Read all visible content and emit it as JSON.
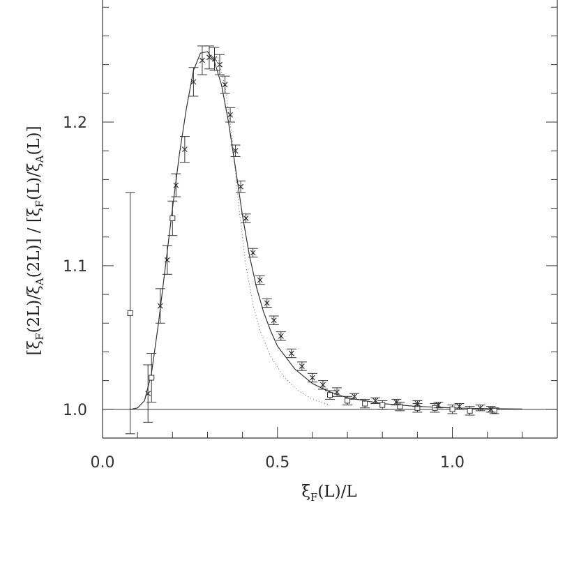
{
  "chart_data": {
    "type": "scatter",
    "xlabel": {
      "main": "ξ",
      "sub": "F",
      "rest": "(L)/L"
    },
    "ylabel": {
      "p1": "[ξ",
      "s1": "F",
      "p2": "(2L)/ξ",
      "s2": "A",
      "p3": "(2L)] / [ξ",
      "s3": "F",
      "p4": "(L)/ξ",
      "s4": "A",
      "p5": "(L)]"
    },
    "xlim": [
      0.0,
      1.3
    ],
    "ylim": [
      0.98,
      1.285
    ],
    "xticks": [
      {
        "v": 0.0,
        "label": "0.0"
      },
      {
        "v": 0.5,
        "label": "0.5"
      },
      {
        "v": 1.0,
        "label": "1.0"
      }
    ],
    "yticks": [
      {
        "v": 1.0,
        "label": "1.0"
      },
      {
        "v": 1.1,
        "label": "1.1"
      },
      {
        "v": 1.2,
        "label": "1.2"
      }
    ],
    "reference_line_y": 1.0,
    "fit_curve": {
      "x": [
        0.08,
        0.1,
        0.12,
        0.14,
        0.16,
        0.18,
        0.2,
        0.22,
        0.24,
        0.26,
        0.28,
        0.3,
        0.32,
        0.34,
        0.36,
        0.38,
        0.4,
        0.42,
        0.44,
        0.46,
        0.48,
        0.5,
        0.55,
        0.6,
        0.65,
        0.7,
        0.8,
        0.9,
        1.0,
        1.1,
        1.2
      ],
      "y": [
        1.0,
        1.001,
        1.006,
        1.025,
        1.06,
        1.1,
        1.14,
        1.178,
        1.21,
        1.236,
        1.248,
        1.249,
        1.242,
        1.226,
        1.2,
        1.168,
        1.135,
        1.107,
        1.085,
        1.068,
        1.055,
        1.044,
        1.028,
        1.018,
        1.012,
        1.008,
        1.004,
        1.002,
        1.001,
        1.0005,
        1.0002
      ]
    },
    "dotted_curve": {
      "x": [
        0.33,
        0.35,
        0.37,
        0.39,
        0.41,
        0.43,
        0.45,
        0.48,
        0.52,
        0.56,
        0.6,
        0.65
      ],
      "y": [
        1.245,
        1.225,
        1.19,
        1.14,
        1.1,
        1.073,
        1.055,
        1.037,
        1.022,
        1.013,
        1.007,
        1.003
      ]
    },
    "series": [
      {
        "marker": "square",
        "points": [
          {
            "x": 0.079,
            "y": 1.067,
            "err": 0.084
          },
          {
            "x": 0.14,
            "y": 1.022,
            "err": 0.017
          },
          {
            "x": 0.2,
            "y": 1.133,
            "err": 0.012
          },
          {
            "x": 0.65,
            "y": 1.01,
            "err": 0.003
          },
          {
            "x": 0.7,
            "y": 1.006,
            "err": 0.003
          },
          {
            "x": 0.75,
            "y": 1.004,
            "err": 0.003
          },
          {
            "x": 0.8,
            "y": 1.003,
            "err": 0.003
          },
          {
            "x": 0.85,
            "y": 1.002,
            "err": 0.003
          },
          {
            "x": 0.9,
            "y": 1.001,
            "err": 0.003
          },
          {
            "x": 0.95,
            "y": 1.001,
            "err": 0.003
          },
          {
            "x": 1.0,
            "y": 1.0,
            "err": 0.003
          },
          {
            "x": 1.05,
            "y": 0.999,
            "err": 0.003
          },
          {
            "x": 1.12,
            "y": 0.999,
            "err": 0.002
          }
        ]
      },
      {
        "marker": "cross",
        "points": [
          {
            "x": 0.13,
            "y": 1.011,
            "err": 0.02
          },
          {
            "x": 0.165,
            "y": 1.072,
            "err": 0.012
          },
          {
            "x": 0.185,
            "y": 1.104,
            "err": 0.01
          },
          {
            "x": 0.21,
            "y": 1.156,
            "err": 0.008
          },
          {
            "x": 0.235,
            "y": 1.181,
            "err": 0.009
          },
          {
            "x": 0.26,
            "y": 1.228,
            "err": 0.01
          },
          {
            "x": 0.285,
            "y": 1.243,
            "err": 0.01
          },
          {
            "x": 0.305,
            "y": 1.245,
            "err": 0.008
          },
          {
            "x": 0.32,
            "y": 1.244,
            "err": 0.008
          },
          {
            "x": 0.335,
            "y": 1.24,
            "err": 0.007
          },
          {
            "x": 0.35,
            "y": 1.226,
            "err": 0.006
          },
          {
            "x": 0.365,
            "y": 1.205,
            "err": 0.005
          },
          {
            "x": 0.38,
            "y": 1.18,
            "err": 0.004
          },
          {
            "x": 0.395,
            "y": 1.155,
            "err": 0.004
          },
          {
            "x": 0.41,
            "y": 1.133,
            "err": 0.003
          },
          {
            "x": 0.43,
            "y": 1.109,
            "err": 0.003
          },
          {
            "x": 0.45,
            "y": 1.09,
            "err": 0.003
          },
          {
            "x": 0.47,
            "y": 1.074,
            "err": 0.003
          },
          {
            "x": 0.49,
            "y": 1.062,
            "err": 0.003
          },
          {
            "x": 0.51,
            "y": 1.051,
            "err": 0.003
          },
          {
            "x": 0.54,
            "y": 1.039,
            "err": 0.003
          },
          {
            "x": 0.57,
            "y": 1.03,
            "err": 0.003
          },
          {
            "x": 0.6,
            "y": 1.022,
            "err": 0.003
          },
          {
            "x": 0.63,
            "y": 1.017,
            "err": 0.003
          },
          {
            "x": 0.67,
            "y": 1.012,
            "err": 0.003
          },
          {
            "x": 0.72,
            "y": 1.009,
            "err": 0.002
          },
          {
            "x": 0.78,
            "y": 1.006,
            "err": 0.002
          },
          {
            "x": 0.84,
            "y": 1.005,
            "err": 0.002
          },
          {
            "x": 0.9,
            "y": 1.004,
            "err": 0.002
          },
          {
            "x": 0.96,
            "y": 1.003,
            "err": 0.002
          },
          {
            "x": 1.02,
            "y": 1.002,
            "err": 0.002
          },
          {
            "x": 1.08,
            "y": 1.001,
            "err": 0.002
          },
          {
            "x": 1.11,
            "y": 1.0,
            "err": 0.002
          }
        ]
      }
    ]
  }
}
